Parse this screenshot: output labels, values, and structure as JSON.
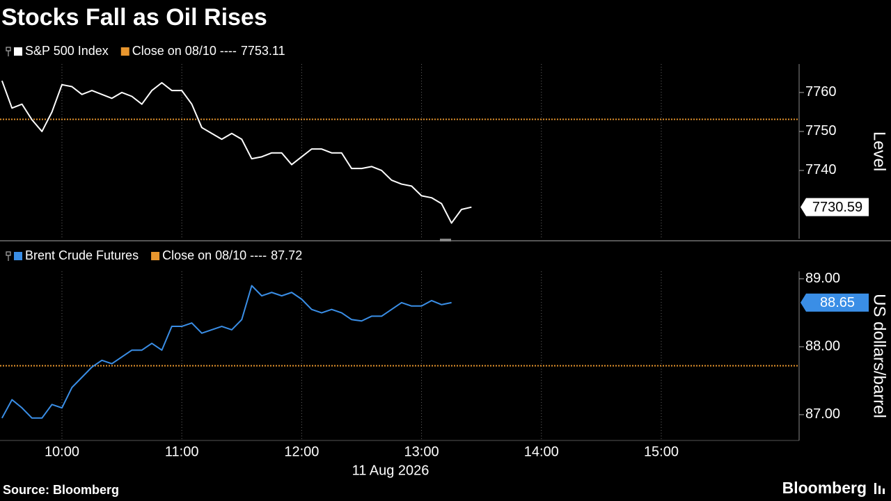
{
  "title": "Stocks Fall as Oil Rises",
  "source": "Source: Bloomberg",
  "brand": "Bloomberg",
  "chart_data": [
    {
      "type": "line",
      "x": [
        "09:30",
        "09:35",
        "09:40",
        "09:45",
        "09:50",
        "09:55",
        "10:00",
        "10:05",
        "10:10",
        "10:15",
        "10:20",
        "10:25",
        "10:30",
        "10:35",
        "10:40",
        "10:45",
        "10:50",
        "10:55",
        "11:00",
        "11:05",
        "11:10",
        "11:15",
        "11:20",
        "11:25",
        "11:30",
        "11:35",
        "11:40",
        "11:45",
        "11:50",
        "11:55",
        "12:00",
        "12:05",
        "12:10",
        "12:15",
        "12:20",
        "12:25",
        "12:30",
        "12:35",
        "12:40",
        "12:45",
        "12:50",
        "12:55",
        "13:00",
        "13:05",
        "13:10",
        "13:15",
        "13:20",
        "13:25"
      ],
      "xlim": [
        "09:29",
        "16:09"
      ],
      "series": [
        {
          "name": "S&P 500 Index",
          "color": "#ffffff",
          "values": [
            7763,
            7756,
            7757,
            7753,
            7750,
            7755,
            7762,
            7761.5,
            7759.5,
            7760.5,
            7759.5,
            7758.5,
            7760,
            7759,
            7757,
            7760.5,
            7762.5,
            7760.5,
            7760.5,
            7757,
            7751,
            7749.5,
            7748,
            7749.5,
            7748,
            7743,
            7743.5,
            7744.5,
            7744.5,
            7741.5,
            7743.5,
            7745.5,
            7745.5,
            7744.5,
            7744.5,
            7740.5,
            7740.5,
            7741,
            7740,
            7737.5,
            7736.5,
            7736,
            7733.5,
            7733,
            7731.5,
            7726.5,
            7730,
            7730.59
          ]
        }
      ],
      "reference_line": {
        "name": "Close on 08/10 ----",
        "value": 7753.11,
        "color": "#e8962e"
      },
      "ylim": [
        7722.5,
        7767.3
      ],
      "yticks": [
        7740,
        7750,
        7760
      ],
      "ylabel": "Level"
    },
    {
      "type": "line",
      "x": [
        "09:30",
        "09:35",
        "09:40",
        "09:45",
        "09:50",
        "09:55",
        "10:00",
        "10:05",
        "10:10",
        "10:15",
        "10:20",
        "10:25",
        "10:30",
        "10:35",
        "10:40",
        "10:45",
        "10:50",
        "10:55",
        "11:00",
        "11:05",
        "11:10",
        "11:15",
        "11:20",
        "11:25",
        "11:30",
        "11:35",
        "11:40",
        "11:45",
        "11:50",
        "11:55",
        "12:00",
        "12:05",
        "12:10",
        "12:15",
        "12:20",
        "12:25",
        "12:30",
        "12:35",
        "12:40",
        "12:45",
        "12:50",
        "12:55",
        "13:00",
        "13:05",
        "13:10",
        "13:15"
      ],
      "xlim": [
        "09:29",
        "16:09"
      ],
      "series": [
        {
          "name": "Brent Crude Futures",
          "color": "#3a8ee6",
          "values": [
            86.95,
            87.22,
            87.1,
            86.95,
            86.95,
            87.15,
            87.1,
            87.4,
            87.55,
            87.7,
            87.8,
            87.75,
            87.85,
            87.95,
            87.95,
            88.05,
            87.95,
            88.3,
            88.3,
            88.35,
            88.2,
            88.25,
            88.3,
            88.25,
            88.4,
            88.9,
            88.75,
            88.8,
            88.75,
            88.8,
            88.7,
            88.55,
            88.5,
            88.55,
            88.5,
            88.4,
            88.38,
            88.45,
            88.45,
            88.55,
            88.65,
            88.6,
            88.6,
            88.68,
            88.62,
            88.65
          ]
        }
      ],
      "reference_line": {
        "name": "Close on 08/10 ----",
        "value": 87.72,
        "color": "#e8962e"
      },
      "ylim": [
        86.62,
        89.11
      ],
      "yticks": [
        {
          "value": 87,
          "label": "87.00"
        },
        {
          "value": 88,
          "label": "88.00"
        },
        {
          "value": 89,
          "label": "89.00"
        }
      ],
      "ylabel": "US dollars/barrel",
      "xticks": [
        "10:00",
        "11:00",
        "12:00",
        "13:00",
        "14:00",
        "15:00"
      ],
      "xlabel": "11 Aug 2026"
    }
  ]
}
